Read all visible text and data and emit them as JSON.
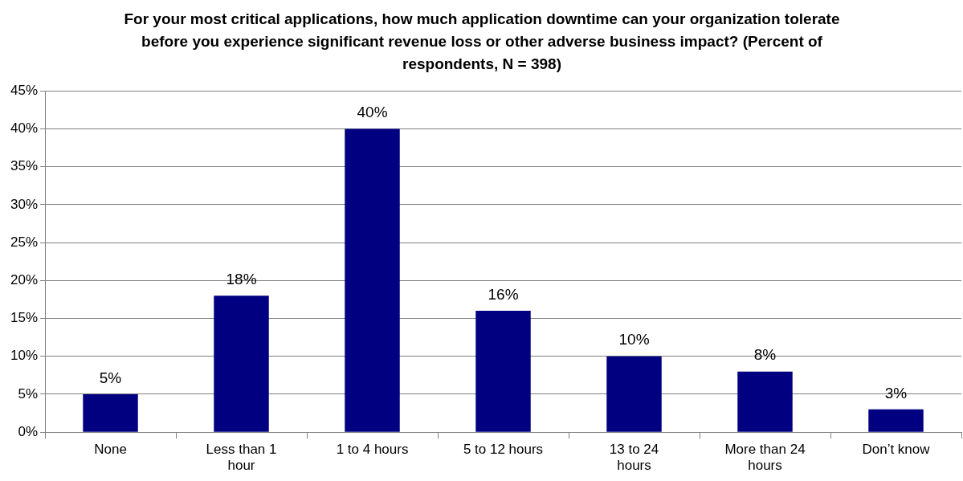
{
  "chart_data": {
    "type": "bar",
    "title": "For your most critical applications, how much application downtime can your organization tolerate before you experience significant revenue loss or other adverse business impact? (Percent of respondents, N = 398)",
    "categories": [
      "None",
      "Less than 1 hour",
      "1 to 4 hours",
      "5 to 12 hours",
      "13 to 24 hours",
      "More than 24 hours",
      "Don’t know"
    ],
    "values": [
      5,
      18,
      40,
      16,
      10,
      8,
      3
    ],
    "value_labels": [
      "5%",
      "18%",
      "40%",
      "16%",
      "10%",
      "8%",
      "3%"
    ],
    "color": "#000080",
    "ylim": [
      0,
      45
    ],
    "yticks": [
      {
        "value": 0,
        "label": "0%"
      },
      {
        "value": 5,
        "label": "5%"
      },
      {
        "value": 10,
        "label": "10%"
      },
      {
        "value": 15,
        "label": "15%"
      },
      {
        "value": 20,
        "label": "20%"
      },
      {
        "value": 25,
        "label": "25%"
      },
      {
        "value": 30,
        "label": "30%"
      },
      {
        "value": 35,
        "label": "35%"
      },
      {
        "value": 40,
        "label": "40%"
      },
      {
        "value": 45,
        "label": "45%"
      }
    ],
    "grid": "y"
  }
}
